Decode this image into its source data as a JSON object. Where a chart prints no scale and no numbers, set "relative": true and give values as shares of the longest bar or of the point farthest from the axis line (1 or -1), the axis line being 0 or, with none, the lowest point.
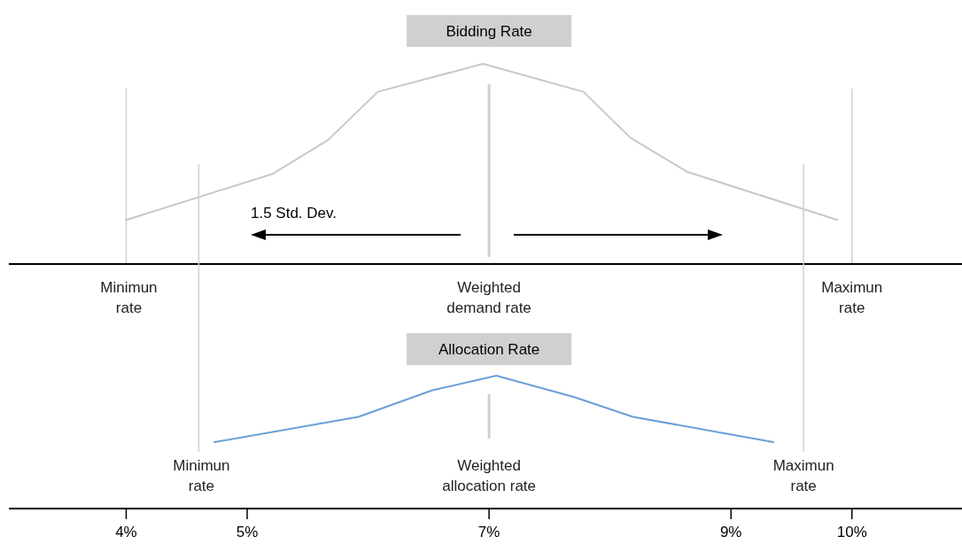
{
  "chart_data": [
    {
      "type": "line",
      "title": "Bidding Rate",
      "relative": true,
      "xlim": [
        3.03,
        10.91
      ],
      "series": [
        {
          "color": "#c8c8c8",
          "x": [
            4,
            5.21,
            5.67,
            6.08,
            6.95,
            7.78,
            8.17,
            8.64,
            9.88
          ],
          "values": [
            0.22,
            0.45,
            0.62,
            0.86,
            1,
            0.86,
            0.63,
            0.46,
            0.22
          ]
        }
      ],
      "ref_lines": [
        {
          "axis": "x",
          "value": 4,
          "label": "Minimun rate",
          "color": "#d0d0d0"
        },
        {
          "axis": "x",
          "value": 7,
          "label": "Weighted demand rate",
          "color": "#d0d0d0"
        },
        {
          "axis": "x",
          "value": 10,
          "label": "Maximun rate",
          "color": "#d0d0d0"
        }
      ],
      "annotations": [
        "1.5 Std. Dev."
      ]
    },
    {
      "type": "line",
      "title": "Allocation Rate",
      "relative": true,
      "xlim": [
        3.03,
        10.91
      ],
      "xticks": [
        {
          "value": 4,
          "label": "4%"
        },
        {
          "value": 5,
          "label": "5%"
        },
        {
          "value": 7,
          "label": "7%"
        },
        {
          "value": 9,
          "label": "9%"
        },
        {
          "value": 10,
          "label": "10%"
        }
      ],
      "series": [
        {
          "color": "#6a9fd8",
          "x": [
            4.73,
            5.92,
            6.53,
            7.06,
            7.7,
            8.19,
            9.35
          ],
          "values": [
            0.5,
            0.69,
            0.89,
            1,
            0.84,
            0.69,
            0.5
          ]
        }
      ],
      "ref_lines": [
        {
          "axis": "x",
          "value": 4.6,
          "label": "Minimun rate",
          "color": "#d0d0d0"
        },
        {
          "axis": "x",
          "value": 7,
          "label": "Weighted allocation rate",
          "color": "#d0d0d0"
        },
        {
          "axis": "x",
          "value": 9.6,
          "label": "Maximun rate",
          "color": "#d0d0d0"
        }
      ]
    }
  ]
}
